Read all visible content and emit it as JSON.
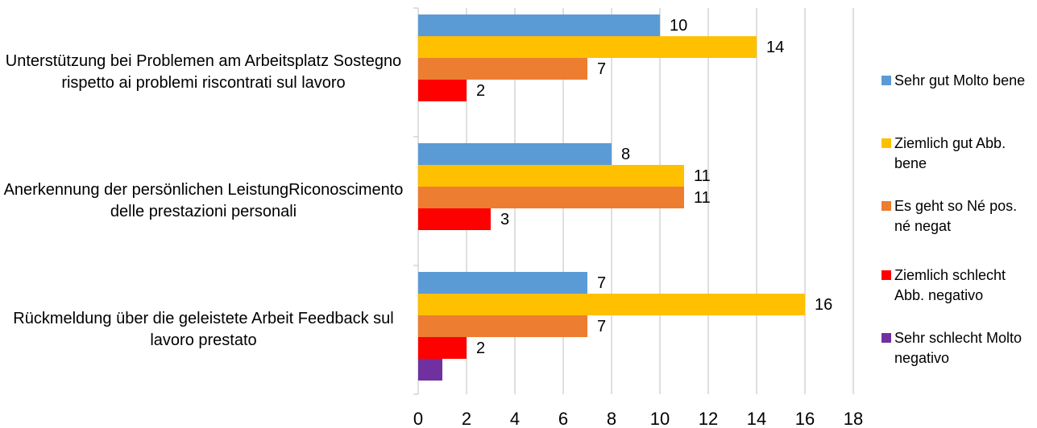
{
  "chart_data": {
    "type": "bar",
    "orientation": "horizontal",
    "categories": [
      "Unterstützung bei Problemen am Arbeitsplatz Sostegno rispetto ai problemi riscontrati sul lavoro",
      "Anerkennung der persönlichen LeistungRiconoscimento delle prestazioni personali",
      "Rückmeldung über die geleistete Arbeit Feedback sul lavoro prestato"
    ],
    "series": [
      {
        "name": "Sehr gut  Molto bene",
        "color": "#5b9bd5",
        "values": [
          10,
          8,
          7
        ]
      },
      {
        "name": "Ziemlich gut Abb. bene",
        "color": "#ffc000",
        "values": [
          14,
          11,
          16
        ]
      },
      {
        "name": "Es geht so Né pos. né negat",
        "color": "#ed7d31",
        "values": [
          7,
          11,
          7
        ]
      },
      {
        "name": "Ziemlich schlecht Abb. negativo",
        "color": "#ff0000",
        "values": [
          2,
          3,
          2
        ]
      },
      {
        "name": "Sehr schlecht Molto negativo",
        "color": "#7030a0",
        "values": [
          0,
          0,
          1
        ],
        "value_labels": [
          null,
          null,
          null
        ]
      }
    ],
    "xlim": [
      0,
      18
    ],
    "xticks": [
      0,
      2,
      4,
      6,
      8,
      10,
      12,
      14,
      16,
      18
    ],
    "grid": true,
    "legend": "right"
  }
}
